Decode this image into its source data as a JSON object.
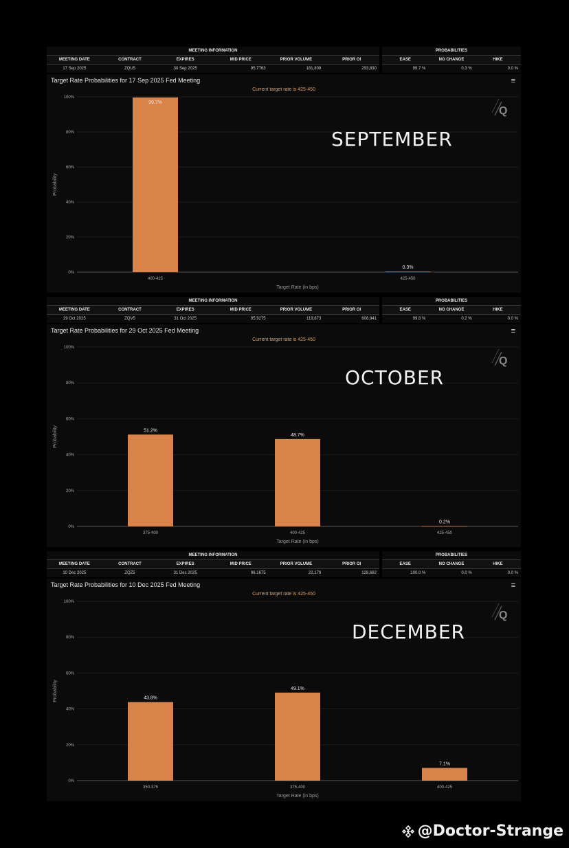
{
  "labels": {
    "meeting_information": "MEETING INFORMATION",
    "probabilities": "PROBABILITIES",
    "meeting_date": "MEETING DATE",
    "contract": "CONTRACT",
    "expires": "EXPIRES",
    "mid_price": "MID PRICE",
    "prior_volume": "PRIOR VOLUME",
    "prior_oi": "PRIOR OI",
    "ease": "EASE",
    "no_change": "NO CHANGE",
    "hike": "HIKE",
    "ylabel": "Probability",
    "xlabel": "Target Rate (in bps)",
    "menu": "≡"
  },
  "colors": {
    "bar": "#d9834b",
    "background": "#0b0b0b",
    "subtitle": "#e0a066"
  },
  "watermark": {
    "text": "@Doctor-Strange",
    "icon": "binance-diamond-icon"
  },
  "panels": [
    {
      "meeting": {
        "date": "17 Sep 2025",
        "contract": "ZQU5",
        "expires": "30 Sep 2025",
        "mid_price": "95.7763",
        "prior_volume": "181,809",
        "prior_oi": "293,830"
      },
      "probs": {
        "ease": "99.7 %",
        "no_change": "0.3 %",
        "hike": "0.0 %"
      },
      "month_label": "SEPTEMBER"
    },
    {
      "meeting": {
        "date": "29 Oct 2025",
        "contract": "ZQV5",
        "expires": "31 Oct 2025",
        "mid_price": "95.9275",
        "prior_volume": "119,873",
        "prior_oi": "608,941"
      },
      "probs": {
        "ease": "99.8 %",
        "no_change": "0.2 %",
        "hike": "0.0 %"
      },
      "month_label": "OCTOBER"
    },
    {
      "meeting": {
        "date": "10 Dec 2025",
        "contract": "ZQZ5",
        "expires": "31 Dec 2025",
        "mid_price": "96.1675",
        "prior_volume": "22,179",
        "prior_oi": "128,662"
      },
      "probs": {
        "ease": "100.0 %",
        "no_change": "0.0 %",
        "hike": "0.0 %"
      },
      "month_label": "DECEMBER"
    }
  ],
  "chart_data": [
    {
      "type": "bar",
      "title": "Target Rate Probabilities for 17 Sep 2025 Fed Meeting",
      "subtitle": "Current target rate is 425-450",
      "categories": [
        "400-425",
        "425-450"
      ],
      "values": [
        99.7,
        0.3
      ],
      "data_labels": [
        "99.7%",
        "0.3%"
      ],
      "xlabel": "Target Rate (in bps)",
      "ylabel": "Probability",
      "ylim": [
        0,
        100
      ],
      "yticks": [
        "0%",
        "20%",
        "40%",
        "60%",
        "80%",
        "100%"
      ]
    },
    {
      "type": "bar",
      "title": "Target Rate Probabilities for 29 Oct 2025 Fed Meeting",
      "subtitle": "Current target rate is 425-450",
      "categories": [
        "375-400",
        "400-425",
        "425-450"
      ],
      "values": [
        51.2,
        48.7,
        0.2
      ],
      "data_labels": [
        "51.2%",
        "48.7%",
        "0.2%"
      ],
      "xlabel": "Target Rate (in bps)",
      "ylabel": "Probability",
      "ylim": [
        0,
        100
      ],
      "yticks": [
        "0%",
        "20%",
        "40%",
        "60%",
        "80%",
        "100%"
      ]
    },
    {
      "type": "bar",
      "title": "Target Rate Probabilities for 10 Dec 2025 Fed Meeting",
      "subtitle": "Current target rate is 425-450",
      "categories": [
        "350-375",
        "375-400",
        "400-425"
      ],
      "values": [
        43.8,
        49.1,
        7.1
      ],
      "data_labels": [
        "43.8%",
        "49.1%",
        "7.1%"
      ],
      "xlabel": "Target Rate (in bps)",
      "ylabel": "Probability",
      "ylim": [
        0,
        100
      ],
      "yticks": [
        "0%",
        "20%",
        "40%",
        "60%",
        "80%",
        "100%"
      ]
    }
  ]
}
